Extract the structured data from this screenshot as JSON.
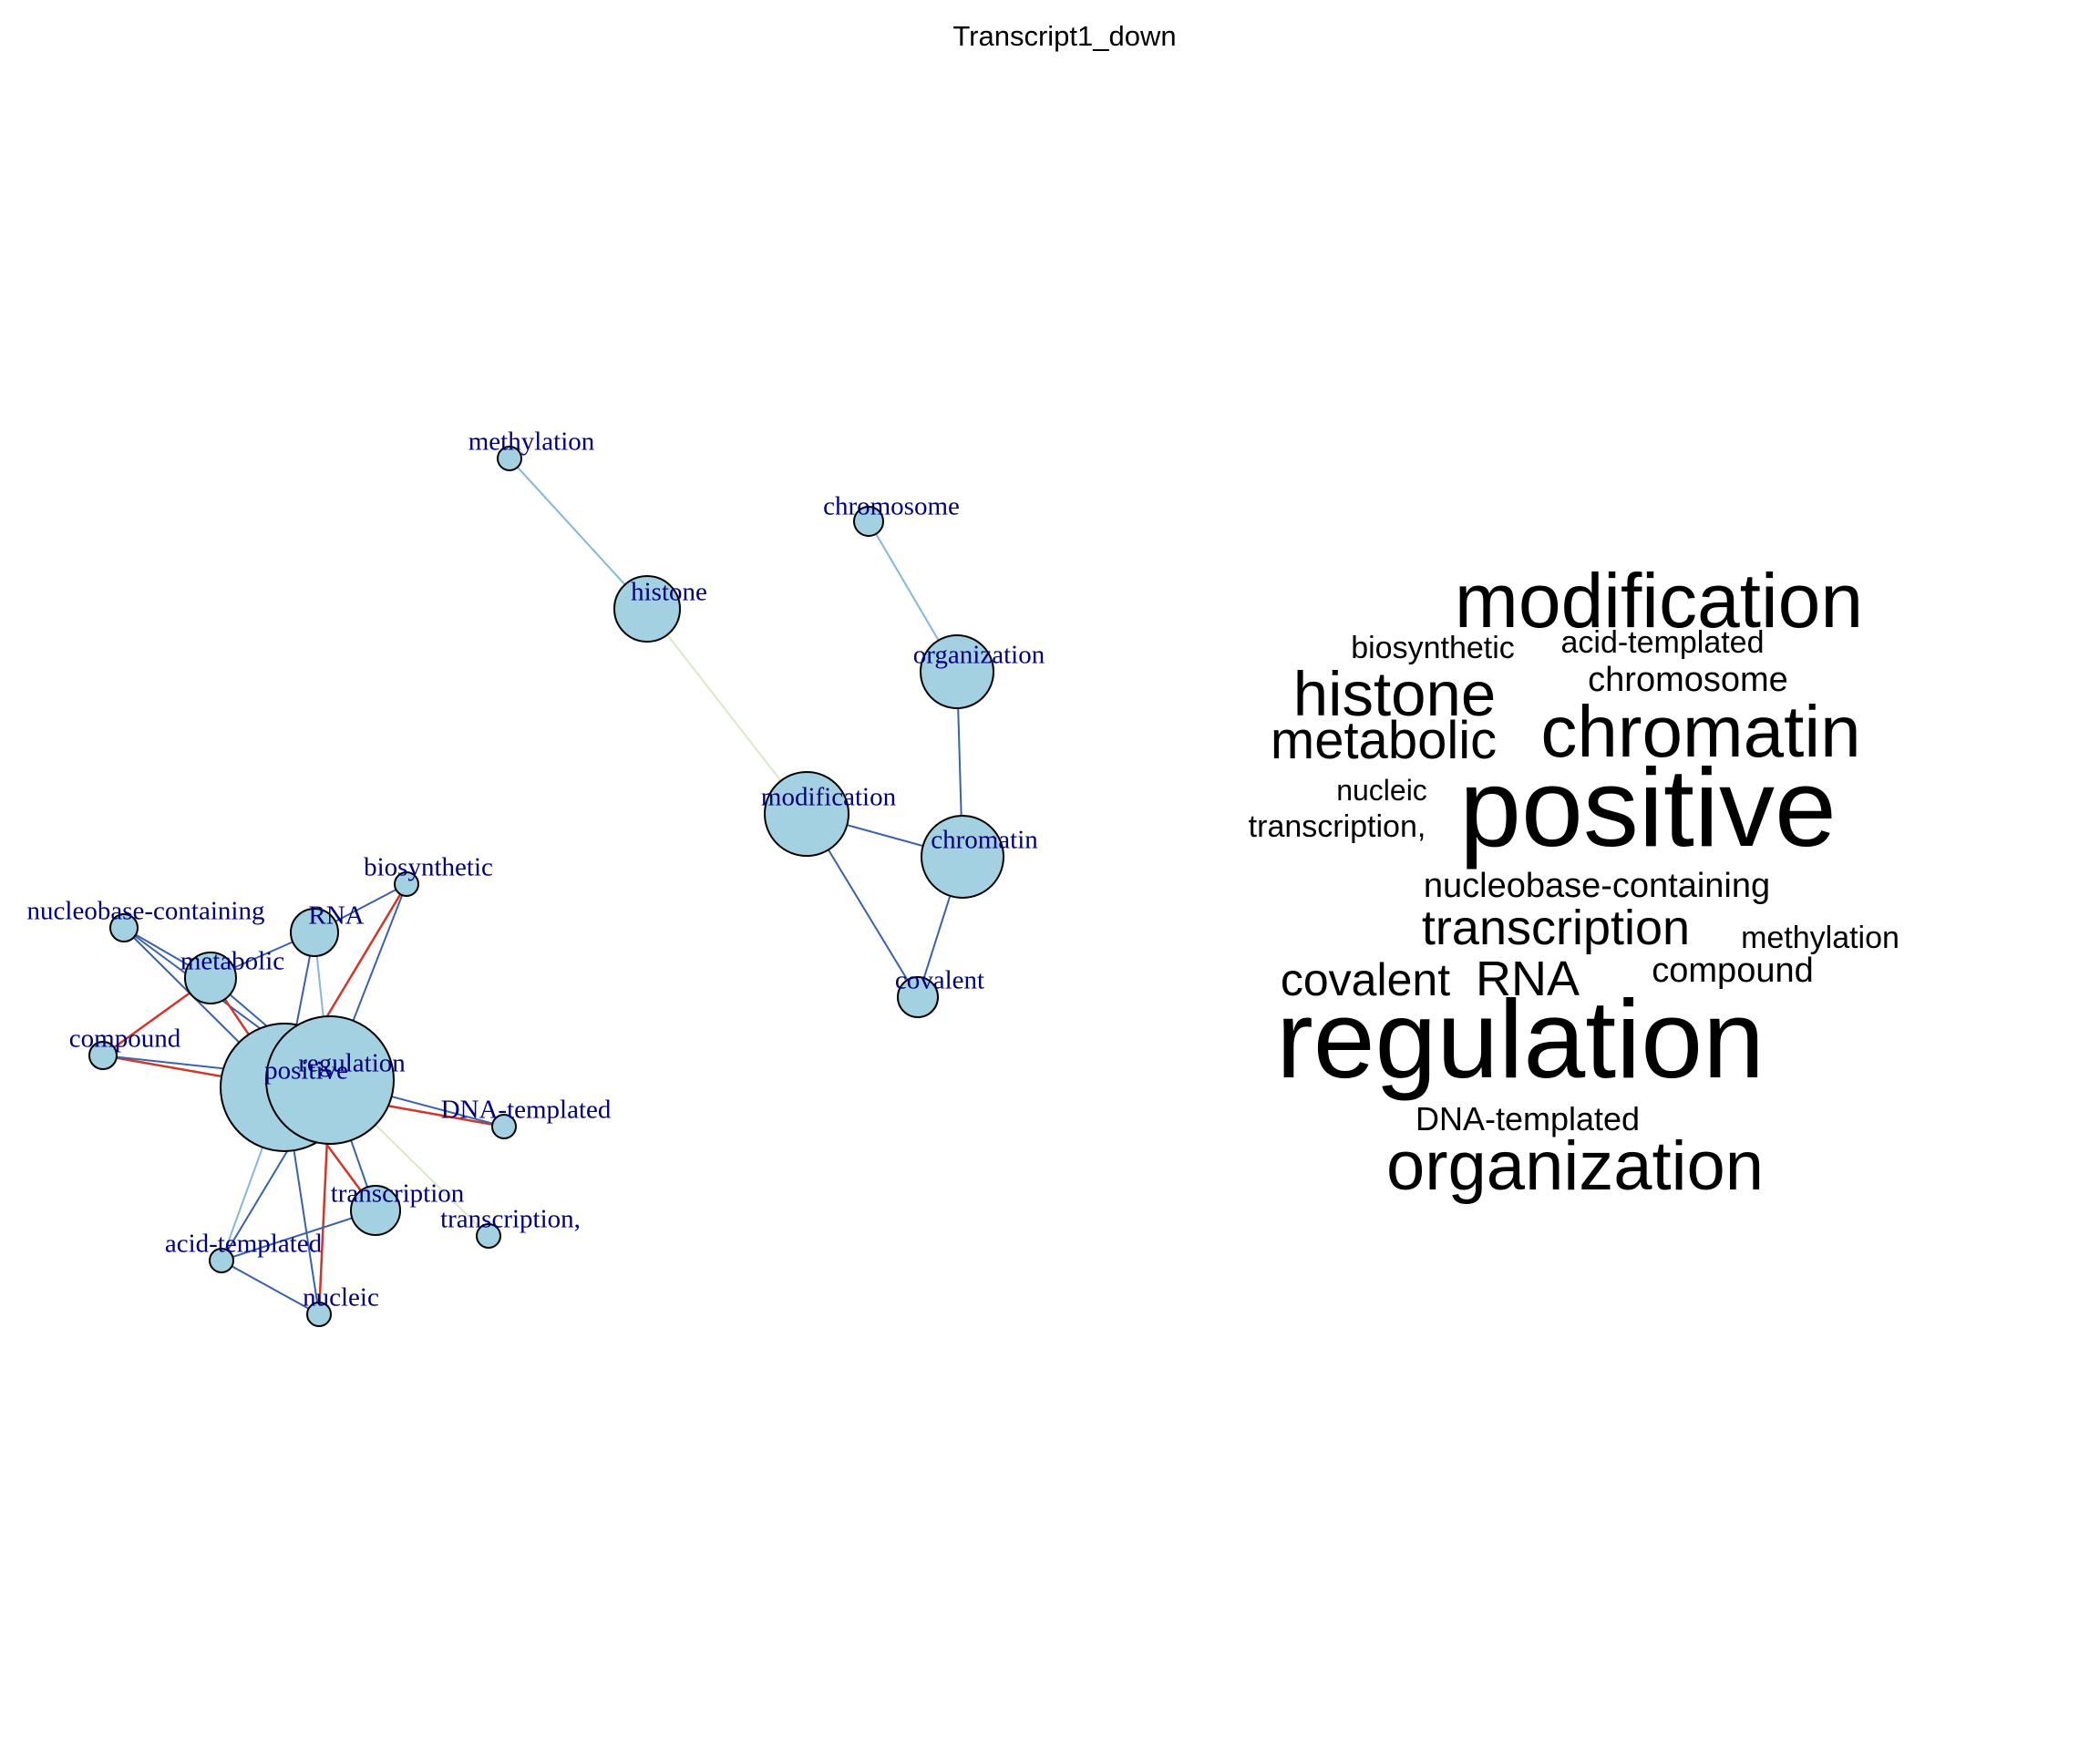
{
  "title": "Transcript1_down",
  "colors": {
    "node_fill": "#a3d1e1",
    "node_stroke": "#000000",
    "label_color": "#00007a",
    "edge_blue": "#3a62a8",
    "edge_lightblue": "#86b6da",
    "edge_red": "#d0362a",
    "edge_pale": "#d9e8c8"
  },
  "network": {
    "nodes": [
      {
        "id": "methylation",
        "label": "methylation"
      },
      {
        "id": "chromosome",
        "label": "chromosome"
      },
      {
        "id": "histone",
        "label": "histone"
      },
      {
        "id": "organization",
        "label": "organization"
      },
      {
        "id": "modification",
        "label": "modification"
      },
      {
        "id": "chromatin",
        "label": "chromatin"
      },
      {
        "id": "covalent",
        "label": "covalent"
      },
      {
        "id": "biosynthetic",
        "label": "biosynthetic"
      },
      {
        "id": "nucleobase-containing",
        "label": "nucleobase-containing"
      },
      {
        "id": "RNA",
        "label": "RNA"
      },
      {
        "id": "metabolic",
        "label": "metabolic"
      },
      {
        "id": "compound",
        "label": "compound"
      },
      {
        "id": "positive",
        "label": "positive"
      },
      {
        "id": "regulation",
        "label": "regulation"
      },
      {
        "id": "DNA-templated",
        "label": "DNA-templated"
      },
      {
        "id": "transcription",
        "label": "transcription"
      },
      {
        "id": "transcription,",
        "label": "transcription,"
      },
      {
        "id": "acid-templated",
        "label": "acid-templated"
      },
      {
        "id": "nucleic",
        "label": "nucleic"
      }
    ],
    "edges": [
      {
        "from": "methylation",
        "to": "histone",
        "color": "lightblue"
      },
      {
        "from": "chromosome",
        "to": "organization",
        "color": "lightblue"
      },
      {
        "from": "histone",
        "to": "modification",
        "color": "pale"
      },
      {
        "from": "organization",
        "to": "chromatin",
        "color": "blue"
      },
      {
        "from": "modification",
        "to": "chromatin",
        "color": "blue"
      },
      {
        "from": "modification",
        "to": "covalent",
        "color": "blue"
      },
      {
        "from": "chromatin",
        "to": "covalent",
        "color": "blue"
      },
      {
        "from": "biosynthetic",
        "to": "RNA",
        "color": "blue"
      },
      {
        "from": "biosynthetic",
        "to": "positive",
        "color": "red"
      },
      {
        "from": "biosynthetic",
        "to": "regulation",
        "color": "blue"
      },
      {
        "from": "nucleobase-containing",
        "to": "metabolic",
        "color": "blue"
      },
      {
        "from": "nucleobase-containing",
        "to": "positive",
        "color": "blue"
      },
      {
        "from": "nucleobase-containing",
        "to": "regulation",
        "color": "blue"
      },
      {
        "from": "RNA",
        "to": "metabolic",
        "color": "blue"
      },
      {
        "from": "RNA",
        "to": "positive",
        "color": "blue"
      },
      {
        "from": "RNA",
        "to": "regulation",
        "color": "lightblue"
      },
      {
        "from": "metabolic",
        "to": "compound",
        "color": "red"
      },
      {
        "from": "metabolic",
        "to": "positive",
        "color": "red"
      },
      {
        "from": "metabolic",
        "to": "regulation",
        "color": "blue"
      },
      {
        "from": "compound",
        "to": "positive",
        "color": "red"
      },
      {
        "from": "compound",
        "to": "regulation",
        "color": "blue"
      },
      {
        "from": "positive",
        "to": "DNA-templated",
        "color": "red"
      },
      {
        "from": "regulation",
        "to": "DNA-templated",
        "color": "blue"
      },
      {
        "from": "positive",
        "to": "transcription",
        "color": "red"
      },
      {
        "from": "regulation",
        "to": "transcription",
        "color": "blue"
      },
      {
        "from": "regulation",
        "to": "transcription,",
        "color": "pale"
      },
      {
        "from": "positive",
        "to": "acid-templated",
        "color": "lightblue"
      },
      {
        "from": "regulation",
        "to": "acid-templated",
        "color": "blue"
      },
      {
        "from": "positive",
        "to": "nucleic",
        "color": "blue"
      },
      {
        "from": "regulation",
        "to": "nucleic",
        "color": "red"
      },
      {
        "from": "transcription",
        "to": "acid-templated",
        "color": "blue"
      },
      {
        "from": "acid-templated",
        "to": "nucleic",
        "color": "blue"
      }
    ]
  },
  "wordcloud": [
    {
      "text": "modification",
      "weight": 3
    },
    {
      "text": "biosynthetic",
      "weight": 1
    },
    {
      "text": "acid-templated",
      "weight": 1
    },
    {
      "text": "histone",
      "weight": 2
    },
    {
      "text": "chromosome",
      "weight": 1
    },
    {
      "text": "metabolic",
      "weight": 2
    },
    {
      "text": "chromatin",
      "weight": 3
    },
    {
      "text": "nucleic",
      "weight": 1
    },
    {
      "text": "positive",
      "weight": 5
    },
    {
      "text": "transcription,",
      "weight": 1
    },
    {
      "text": "nucleobase-containing",
      "weight": 1
    },
    {
      "text": "transcription",
      "weight": 2
    },
    {
      "text": "methylation",
      "weight": 1
    },
    {
      "text": "covalent",
      "weight": 2
    },
    {
      "text": "RNA",
      "weight": 2
    },
    {
      "text": "compound",
      "weight": 1
    },
    {
      "text": "regulation",
      "weight": 5
    },
    {
      "text": "DNA-templated",
      "weight": 1
    },
    {
      "text": "organization",
      "weight": 3
    }
  ]
}
